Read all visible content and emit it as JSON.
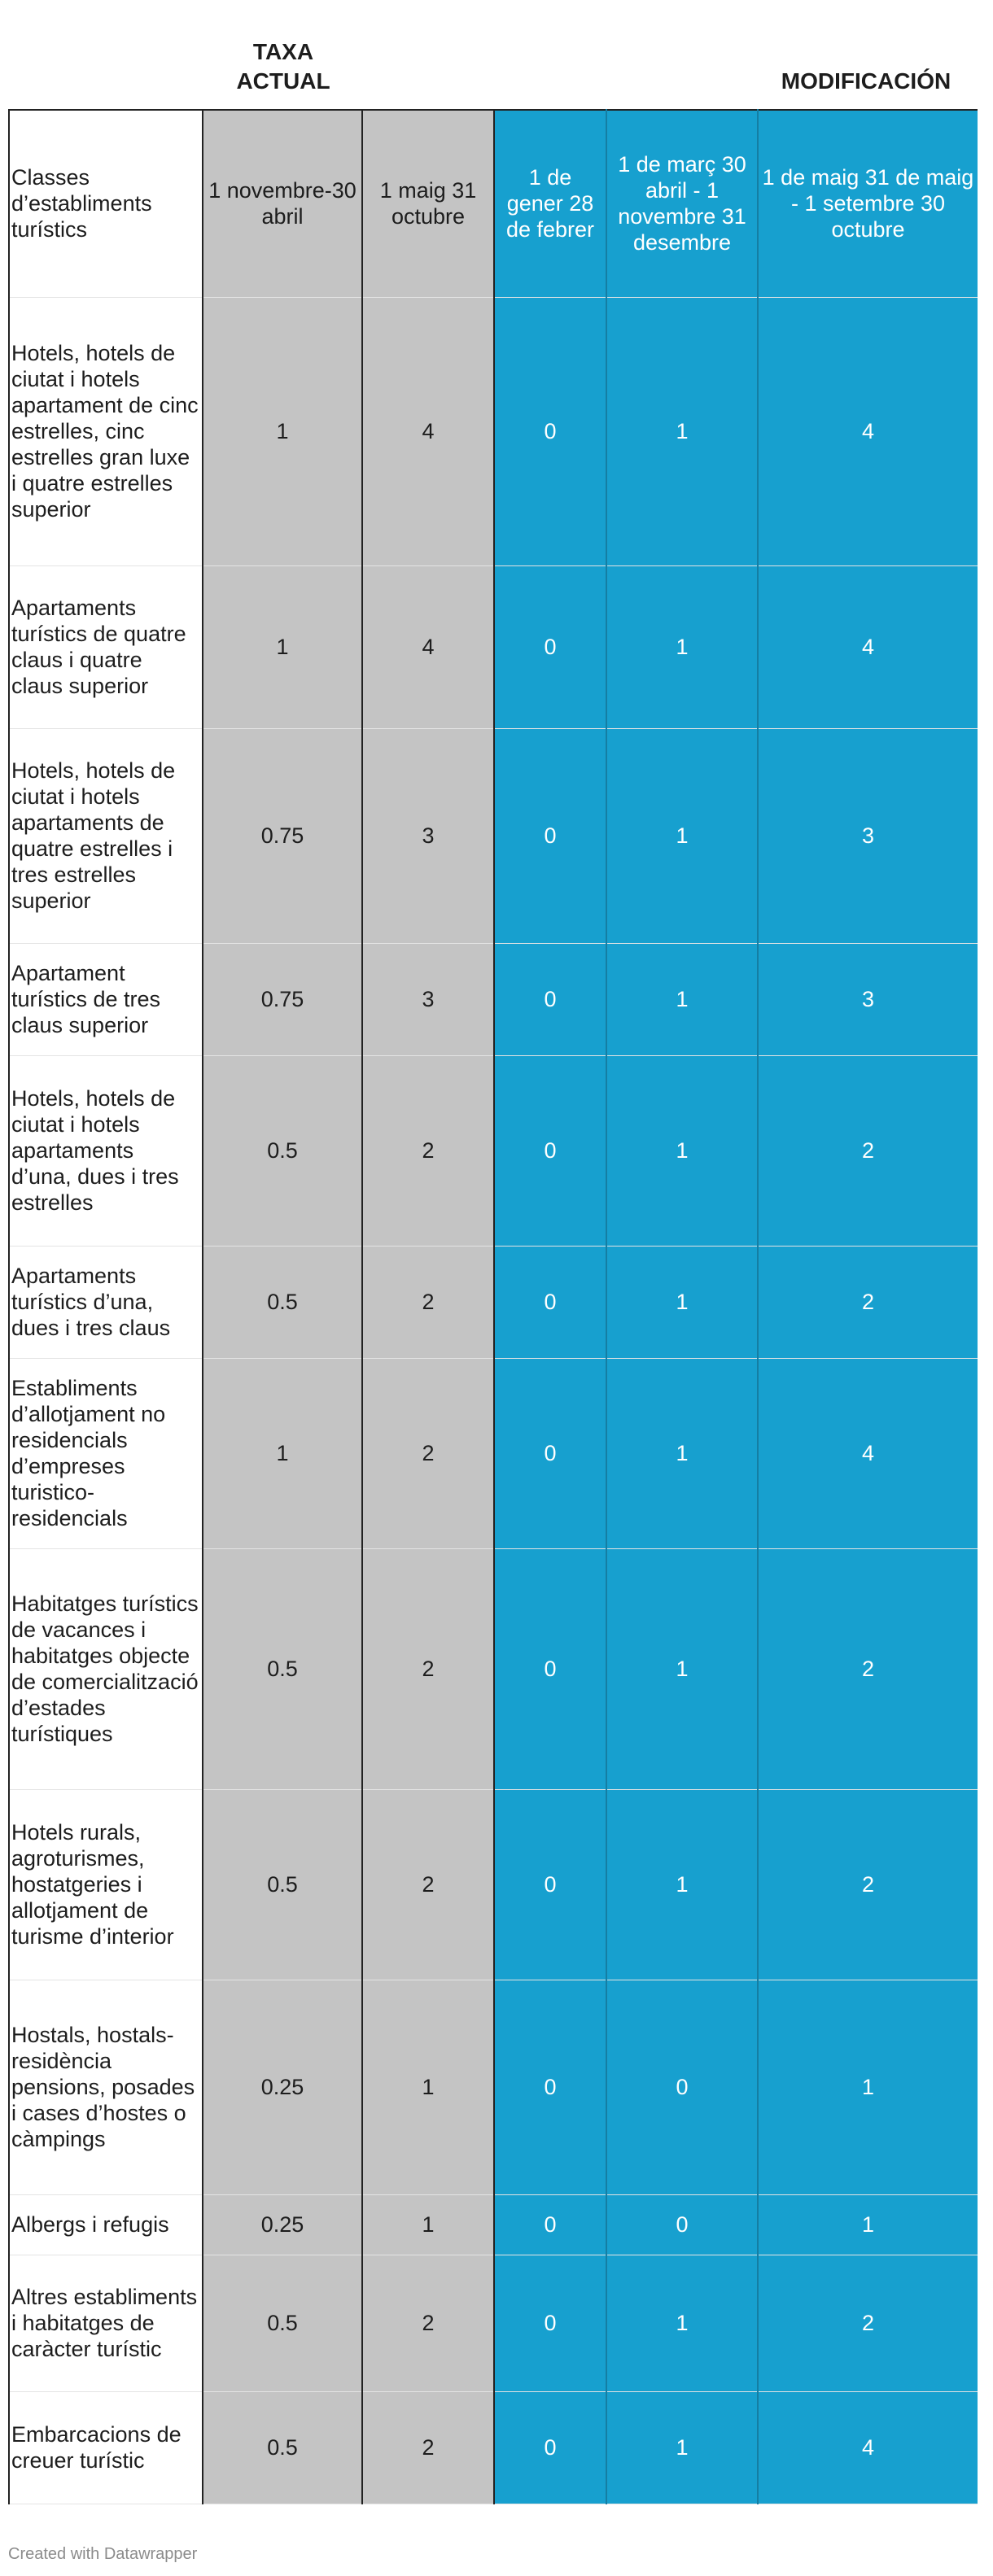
{
  "group_headers": {
    "current": [
      "TAXA",
      "ACTUAL"
    ],
    "modification": "MODIFICACIÓN"
  },
  "columns": [
    "Classes d’establiments turístics",
    "1 novembre-30 abril",
    "1 maig 31 octubre",
    "1 de gener 28 de febrer",
    "1 de març 30 abril - 1 novembre 31 desembre",
    "1 de maig 31 de maig - 1 setembre 30 octubre"
  ],
  "rows": [
    {
      "label": "Hotels, hotels de ciutat i hotels apartament de cinc estrelles, cinc estrelles gran luxe i quatre estrelles superior",
      "values": [
        "1",
        "4",
        "0",
        "1",
        "4"
      ]
    },
    {
      "label": "Apartaments turístics de quatre claus i quatre claus superior",
      "values": [
        "1",
        "4",
        "0",
        "1",
        "4"
      ]
    },
    {
      "label": "Hotels, hotels de ciutat i hotels apartaments de quatre estrelles i tres estrelles superior",
      "values": [
        "0.75",
        "3",
        "0",
        "1",
        "3"
      ]
    },
    {
      "label": "Apartament turístics de tres claus superior",
      "values": [
        "0.75",
        "3",
        "0",
        "1",
        "3"
      ]
    },
    {
      "label": "Hotels, hotels de ciutat i hotels apartaments d’una, dues i tres estrelles",
      "values": [
        "0.5",
        "2",
        "0",
        "1",
        "2"
      ]
    },
    {
      "label": "Apartaments turístics d’una, dues i tres claus",
      "values": [
        "0.5",
        "2",
        "0",
        "1",
        "2"
      ]
    },
    {
      "label": "Establiments d’allotjament no residencials d’empreses turistico-residencials",
      "values": [
        "1",
        "2",
        "0",
        "1",
        "4"
      ]
    },
    {
      "label": "Habitatges turístics de vacances i habitatges objecte de comercialització d’estades turístiques",
      "values": [
        "0.5",
        "2",
        "0",
        "1",
        "2"
      ]
    },
    {
      "label": "Hotels rurals, agroturismes, hostatgeries i allotjament de turisme d’interior",
      "values": [
        "0.5",
        "2",
        "0",
        "1",
        "2"
      ]
    },
    {
      "label": "Hostals, hostals-residència pensions, posades i cases d’hostes o càmpings",
      "values": [
        "0.25",
        "1",
        "0",
        "0",
        "1"
      ]
    },
    {
      "label": "Albergs i refugis",
      "values": [
        "0.25",
        "1",
        "0",
        "0",
        "1"
      ]
    },
    {
      "label": "Altres establiments i habitatges de caràcter turístic",
      "values": [
        "0.5",
        "2",
        "0",
        "1",
        "2"
      ]
    },
    {
      "label": "Embarcacions de creuer turístic",
      "values": [
        "0.5",
        "2",
        "0",
        "1",
        "4"
      ]
    }
  ],
  "footer": "Created with Datawrapper",
  "colors": {
    "current_bg": "#c4c4c4",
    "modification_bg": "#17a0cf"
  }
}
